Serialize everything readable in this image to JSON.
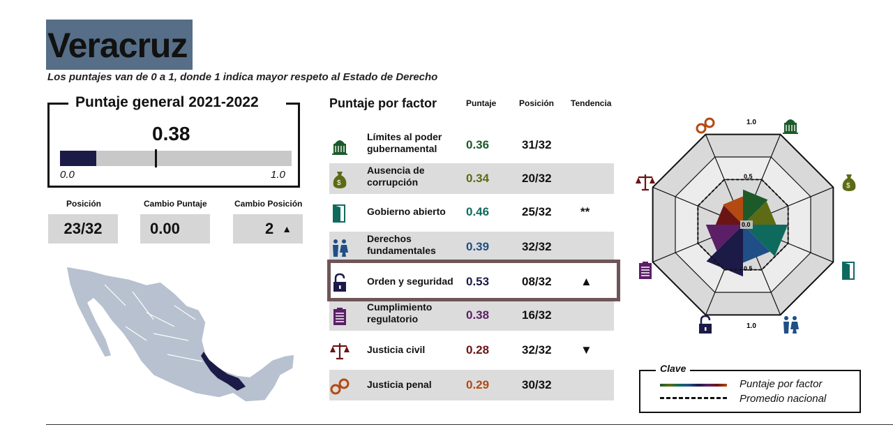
{
  "header": {
    "title": "Veracruz",
    "subtitle": "Los puntajes van de 0 a 1, donde 1 indica mayor respeto al Estado de Derecho"
  },
  "overall": {
    "title": "Puntaje general 2021-2022",
    "score": "0.38",
    "fraction": 0.38,
    "min_label": "0.0",
    "max_label": "1.0"
  },
  "stats": {
    "posicion_label": "Posición",
    "posicion_value": "23/32",
    "cambio_puntaje_label": "Cambio Puntaje",
    "cambio_puntaje_value": "0.00",
    "cambio_posicion_label": "Cambio Posición",
    "cambio_posicion_value": "2",
    "cambio_posicion_arrow": "▲"
  },
  "factor_table": {
    "title": "Puntaje por factor",
    "col_puntaje": "Puntaje",
    "col_posicion": "Posición",
    "col_tendencia": "Tendencia",
    "rows": [
      {
        "name1": "Límites al poder",
        "name2": "gubernamental",
        "score": "0.36",
        "position": "31/32",
        "trend": "",
        "color": "#1d5a2a",
        "icon": "government-building-icon"
      },
      {
        "name1": "Ausencia de",
        "name2": "corrupción",
        "score": "0.34",
        "position": "20/32",
        "trend": "",
        "color": "#5d6b14",
        "icon": "money-bag-icon"
      },
      {
        "name1": "Gobierno abierto",
        "name2": "",
        "score": "0.46",
        "position": "25/32",
        "trend": "**",
        "color": "#0f6a5e",
        "icon": "open-door-icon"
      },
      {
        "name1": "Derechos",
        "name2": "fundamentales",
        "score": "0.39",
        "position": "32/32",
        "trend": "",
        "color": "#1f4f86",
        "icon": "people-icon"
      },
      {
        "name1": "Orden y seguridad",
        "name2": "",
        "score": "0.53",
        "position": "08/32",
        "trend": "▲",
        "color": "#1c1a47",
        "icon": "padlock-icon"
      },
      {
        "name1": "Cumplimiento",
        "name2": "regulatorio",
        "score": "0.38",
        "position": "16/32",
        "trend": "",
        "color": "#5a1f66",
        "icon": "clipboard-icon"
      },
      {
        "name1": "Justicia civil",
        "name2": "",
        "score": "0.28",
        "position": "32/32",
        "trend": "▼",
        "color": "#6b1414",
        "icon": "scales-icon"
      },
      {
        "name1": "Justicia penal",
        "name2": "",
        "score": "0.29",
        "position": "30/32",
        "trend": "",
        "color": "#b34a12",
        "icon": "handcuffs-icon"
      }
    ]
  },
  "radar": {
    "label_top": "1.0",
    "label_mid": "0.5",
    "label_center": "0.0",
    "label_mid_bottom": "0.5",
    "label_bottom": "1.0"
  },
  "key": {
    "title": "Clave",
    "line1": "Puntaje por factor",
    "line2": "Promedio nacional"
  }
}
